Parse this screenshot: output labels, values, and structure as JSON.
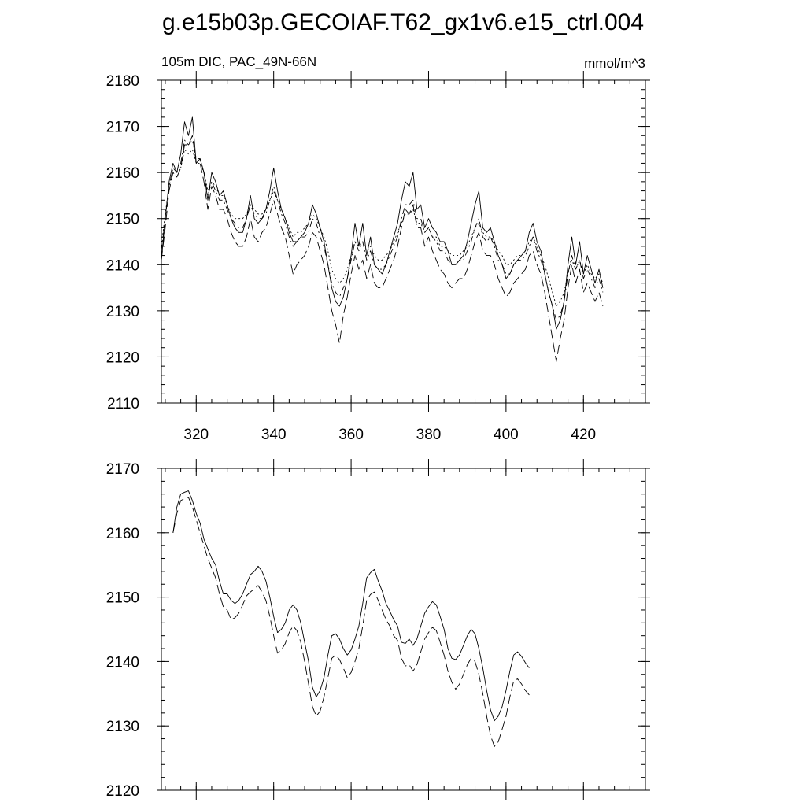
{
  "figure": {
    "title": "g.e15b03p.GECOIAF.T62_gx1v6.e15_ctrl.004"
  },
  "chart_data": [
    {
      "type": "line",
      "title": "",
      "subtitle_left": "105m DIC, PAC_49N-66N",
      "subtitle_right": "mmol/m^3",
      "xlabel": "",
      "ylabel": "",
      "xlim": [
        311,
        436
      ],
      "ylim": [
        2110,
        2180
      ],
      "x_ticks": [
        320,
        340,
        360,
        380,
        400,
        420
      ],
      "y_ticks": [
        2110,
        2120,
        2130,
        2140,
        2150,
        2160,
        2170,
        2180
      ],
      "x_start": 311,
      "x_step": 1,
      "series": [
        {
          "style": "solid",
          "values": [
            2141,
            2150,
            2158,
            2162,
            2160,
            2164,
            2171,
            2168,
            2172,
            2162,
            2163,
            2160,
            2154,
            2160,
            2158,
            2155,
            2156,
            2153,
            2150,
            2148,
            2147,
            2147,
            2150,
            2155,
            2150,
            2149,
            2150,
            2152,
            2156,
            2161,
            2156,
            2152,
            2150,
            2147,
            2145,
            2145,
            2146,
            2147,
            2149,
            2153,
            2151,
            2148,
            2145,
            2140,
            2135,
            2132,
            2131,
            2133,
            2137,
            2142,
            2149,
            2144,
            2149,
            2142,
            2146,
            2140,
            2139,
            2138,
            2140,
            2143,
            2146,
            2149,
            2154,
            2158,
            2157,
            2160,
            2152,
            2153,
            2148,
            2150,
            2148,
            2147,
            2145,
            2145,
            2143,
            2140,
            2140,
            2141,
            2142,
            2145,
            2149,
            2153,
            2156,
            2148,
            2147,
            2148,
            2145,
            2142,
            2140,
            2137,
            2138,
            2140,
            2141,
            2142,
            2143,
            2147,
            2149,
            2145,
            2143,
            2138,
            2134,
            2131,
            2126,
            2128,
            2132,
            2140,
            2146,
            2140,
            2145,
            2138,
            2142,
            2139,
            2136,
            2139,
            2135
          ],
          "name": ""
        },
        {
          "style": "long-dash",
          "values": [
            2141,
            2148,
            2156,
            2160,
            2159,
            2161,
            2166,
            2166,
            2168,
            2162,
            2162,
            2158,
            2152,
            2157,
            2155,
            2152,
            2152,
            2150,
            2147,
            2145,
            2144,
            2144,
            2146,
            2150,
            2146,
            2145,
            2147,
            2148,
            2151,
            2154,
            2151,
            2148,
            2146,
            2142,
            2138,
            2140,
            2141,
            2142,
            2144,
            2147,
            2146,
            2143,
            2140,
            2135,
            2130,
            2127,
            2123,
            2129,
            2133,
            2138,
            2142,
            2139,
            2141,
            2137,
            2140,
            2136,
            2135,
            2135,
            2137,
            2139,
            2141,
            2144,
            2148,
            2152,
            2151,
            2153,
            2148,
            2148,
            2144,
            2146,
            2143,
            2141,
            2139,
            2138,
            2136,
            2135,
            2136,
            2137,
            2137,
            2139,
            2142,
            2145,
            2147,
            2143,
            2142,
            2142,
            2140,
            2137,
            2135,
            2133,
            2134,
            2136,
            2137,
            2138,
            2139,
            2142,
            2143,
            2140,
            2138,
            2134,
            2129,
            2124,
            2119,
            2124,
            2128,
            2135,
            2140,
            2136,
            2139,
            2134,
            2136,
            2134,
            2132,
            2134,
            2131
          ],
          "name": ""
        },
        {
          "style": "dash-dot",
          "values": [
            2143,
            2150,
            2157,
            2161,
            2160,
            2162,
            2167,
            2166,
            2167,
            2163,
            2163,
            2160,
            2155,
            2158,
            2156,
            2154,
            2154,
            2152,
            2150,
            2149,
            2148,
            2148,
            2150,
            2153,
            2151,
            2150,
            2150,
            2151,
            2154,
            2157,
            2154,
            2151,
            2149,
            2146,
            2144,
            2145,
            2146,
            2146,
            2147,
            2150,
            2149,
            2146,
            2144,
            2140,
            2136,
            2134,
            2133,
            2135,
            2137,
            2141,
            2145,
            2143,
            2145,
            2141,
            2143,
            2140,
            2139,
            2139,
            2140,
            2142,
            2144,
            2146,
            2150,
            2153,
            2153,
            2154,
            2150,
            2150,
            2147,
            2148,
            2146,
            2145,
            2143,
            2143,
            2141,
            2140,
            2140,
            2141,
            2141,
            2143,
            2145,
            2148,
            2150,
            2146,
            2145,
            2146,
            2144,
            2141,
            2140,
            2138,
            2138,
            2140,
            2141,
            2141,
            2142,
            2144,
            2146,
            2143,
            2141,
            2138,
            2134,
            2131,
            2128,
            2129,
            2132,
            2138,
            2142,
            2139,
            2141,
            2137,
            2139,
            2137,
            2135,
            2137,
            2134
          ],
          "name": ""
        },
        {
          "style": "dotted",
          "values": [
            2144,
            2151,
            2157,
            2160,
            2159,
            2161,
            2165,
            2164,
            2165,
            2162,
            2162,
            2160,
            2156,
            2158,
            2157,
            2155,
            2155,
            2153,
            2151,
            2150,
            2150,
            2150,
            2151,
            2153,
            2152,
            2151,
            2151,
            2152,
            2154,
            2156,
            2154,
            2152,
            2150,
            2148,
            2146,
            2147,
            2147,
            2148,
            2149,
            2151,
            2150,
            2148,
            2146,
            2143,
            2139,
            2137,
            2136,
            2137,
            2139,
            2142,
            2145,
            2144,
            2145,
            2143,
            2144,
            2142,
            2141,
            2141,
            2142,
            2143,
            2145,
            2147,
            2149,
            2151,
            2151,
            2152,
            2149,
            2149,
            2147,
            2148,
            2146,
            2146,
            2144,
            2144,
            2143,
            2142,
            2142,
            2142,
            2143,
            2144,
            2146,
            2148,
            2149,
            2147,
            2146,
            2146,
            2145,
            2143,
            2142,
            2140,
            2140,
            2141,
            2142,
            2142,
            2143,
            2145,
            2146,
            2144,
            2142,
            2140,
            2137,
            2134,
            2131,
            2132,
            2134,
            2138,
            2141,
            2139,
            2141,
            2138,
            2140,
            2138,
            2137,
            2138,
            2136
          ],
          "name": ""
        }
      ]
    },
    {
      "type": "line",
      "title": "",
      "xlabel": "",
      "ylabel": "",
      "xlim": [
        311,
        436
      ],
      "ylim": [
        2120,
        2170
      ],
      "x_ticks": [
        320,
        340,
        360,
        380,
        400,
        420
      ],
      "y_ticks": [
        2120,
        2130,
        2140,
        2150,
        2160,
        2170
      ],
      "x_start": 314,
      "x_step": 1,
      "series": [
        {
          "style": "solid",
          "values": [
            2160,
            2164,
            2166,
            2166.3,
            2166.5,
            2165,
            2163,
            2161.5,
            2159,
            2157.5,
            2156,
            2155,
            2152.5,
            2150.5,
            2150.5,
            2149.5,
            2149,
            2149.5,
            2150.5,
            2152,
            2153.5,
            2154,
            2154.8,
            2154,
            2152.5,
            2150,
            2147,
            2144.5,
            2145,
            2146,
            2148,
            2148.8,
            2148,
            2146,
            2143,
            2140,
            2136,
            2134.5,
            2135.5,
            2137.5,
            2141,
            2144,
            2144.3,
            2143.5,
            2142,
            2141,
            2141.8,
            2143.5,
            2145.5,
            2149,
            2153,
            2153.8,
            2154.3,
            2152.5,
            2151,
            2149,
            2147.8,
            2146.5,
            2145.5,
            2143,
            2142.8,
            2143.5,
            2142.5,
            2143.5,
            2145.5,
            2147.5,
            2148.5,
            2149.3,
            2148.8,
            2147,
            2145,
            2142,
            2140.5,
            2140.3,
            2141,
            2142.5,
            2144,
            2145,
            2144.3,
            2142,
            2139,
            2135.5,
            2132.5,
            2130.8,
            2131.5,
            2133,
            2135.5,
            2138.5,
            2141,
            2141.5,
            2140.8,
            2139.8,
            2139
          ],
          "name": ""
        },
        {
          "style": "long-dash",
          "values": [
            2160,
            2163,
            2165,
            2165.3,
            2165.5,
            2164,
            2162,
            2160,
            2158,
            2156,
            2154.5,
            2153,
            2150.5,
            2148.5,
            2148,
            2146.5,
            2146.8,
            2147.5,
            2148.8,
            2150.2,
            2150.8,
            2151.3,
            2151.8,
            2150.8,
            2149.5,
            2147,
            2144,
            2141.3,
            2141.8,
            2142.8,
            2144.5,
            2145.5,
            2144.8,
            2143,
            2140,
            2136.5,
            2133,
            2131.5,
            2132.3,
            2134.5,
            2137.5,
            2140.5,
            2141,
            2140.3,
            2139,
            2137.5,
            2138.3,
            2140,
            2142,
            2145.5,
            2149.5,
            2150.4,
            2150.8,
            2149.5,
            2148,
            2146.5,
            2145.5,
            2144,
            2143.3,
            2140.5,
            2139.3,
            2139.5,
            2138.5,
            2139.5,
            2141.5,
            2143.5,
            2144.5,
            2145.3,
            2144.8,
            2143,
            2141,
            2138.5,
            2136.8,
            2135.7,
            2136.5,
            2138,
            2139.5,
            2140.5,
            2140,
            2138,
            2135,
            2131.5,
            2128.5,
            2126.8,
            2127.5,
            2129.5,
            2131.5,
            2134.5,
            2137,
            2137.3,
            2136.5,
            2135.5,
            2134.8
          ],
          "name": ""
        }
      ]
    }
  ]
}
